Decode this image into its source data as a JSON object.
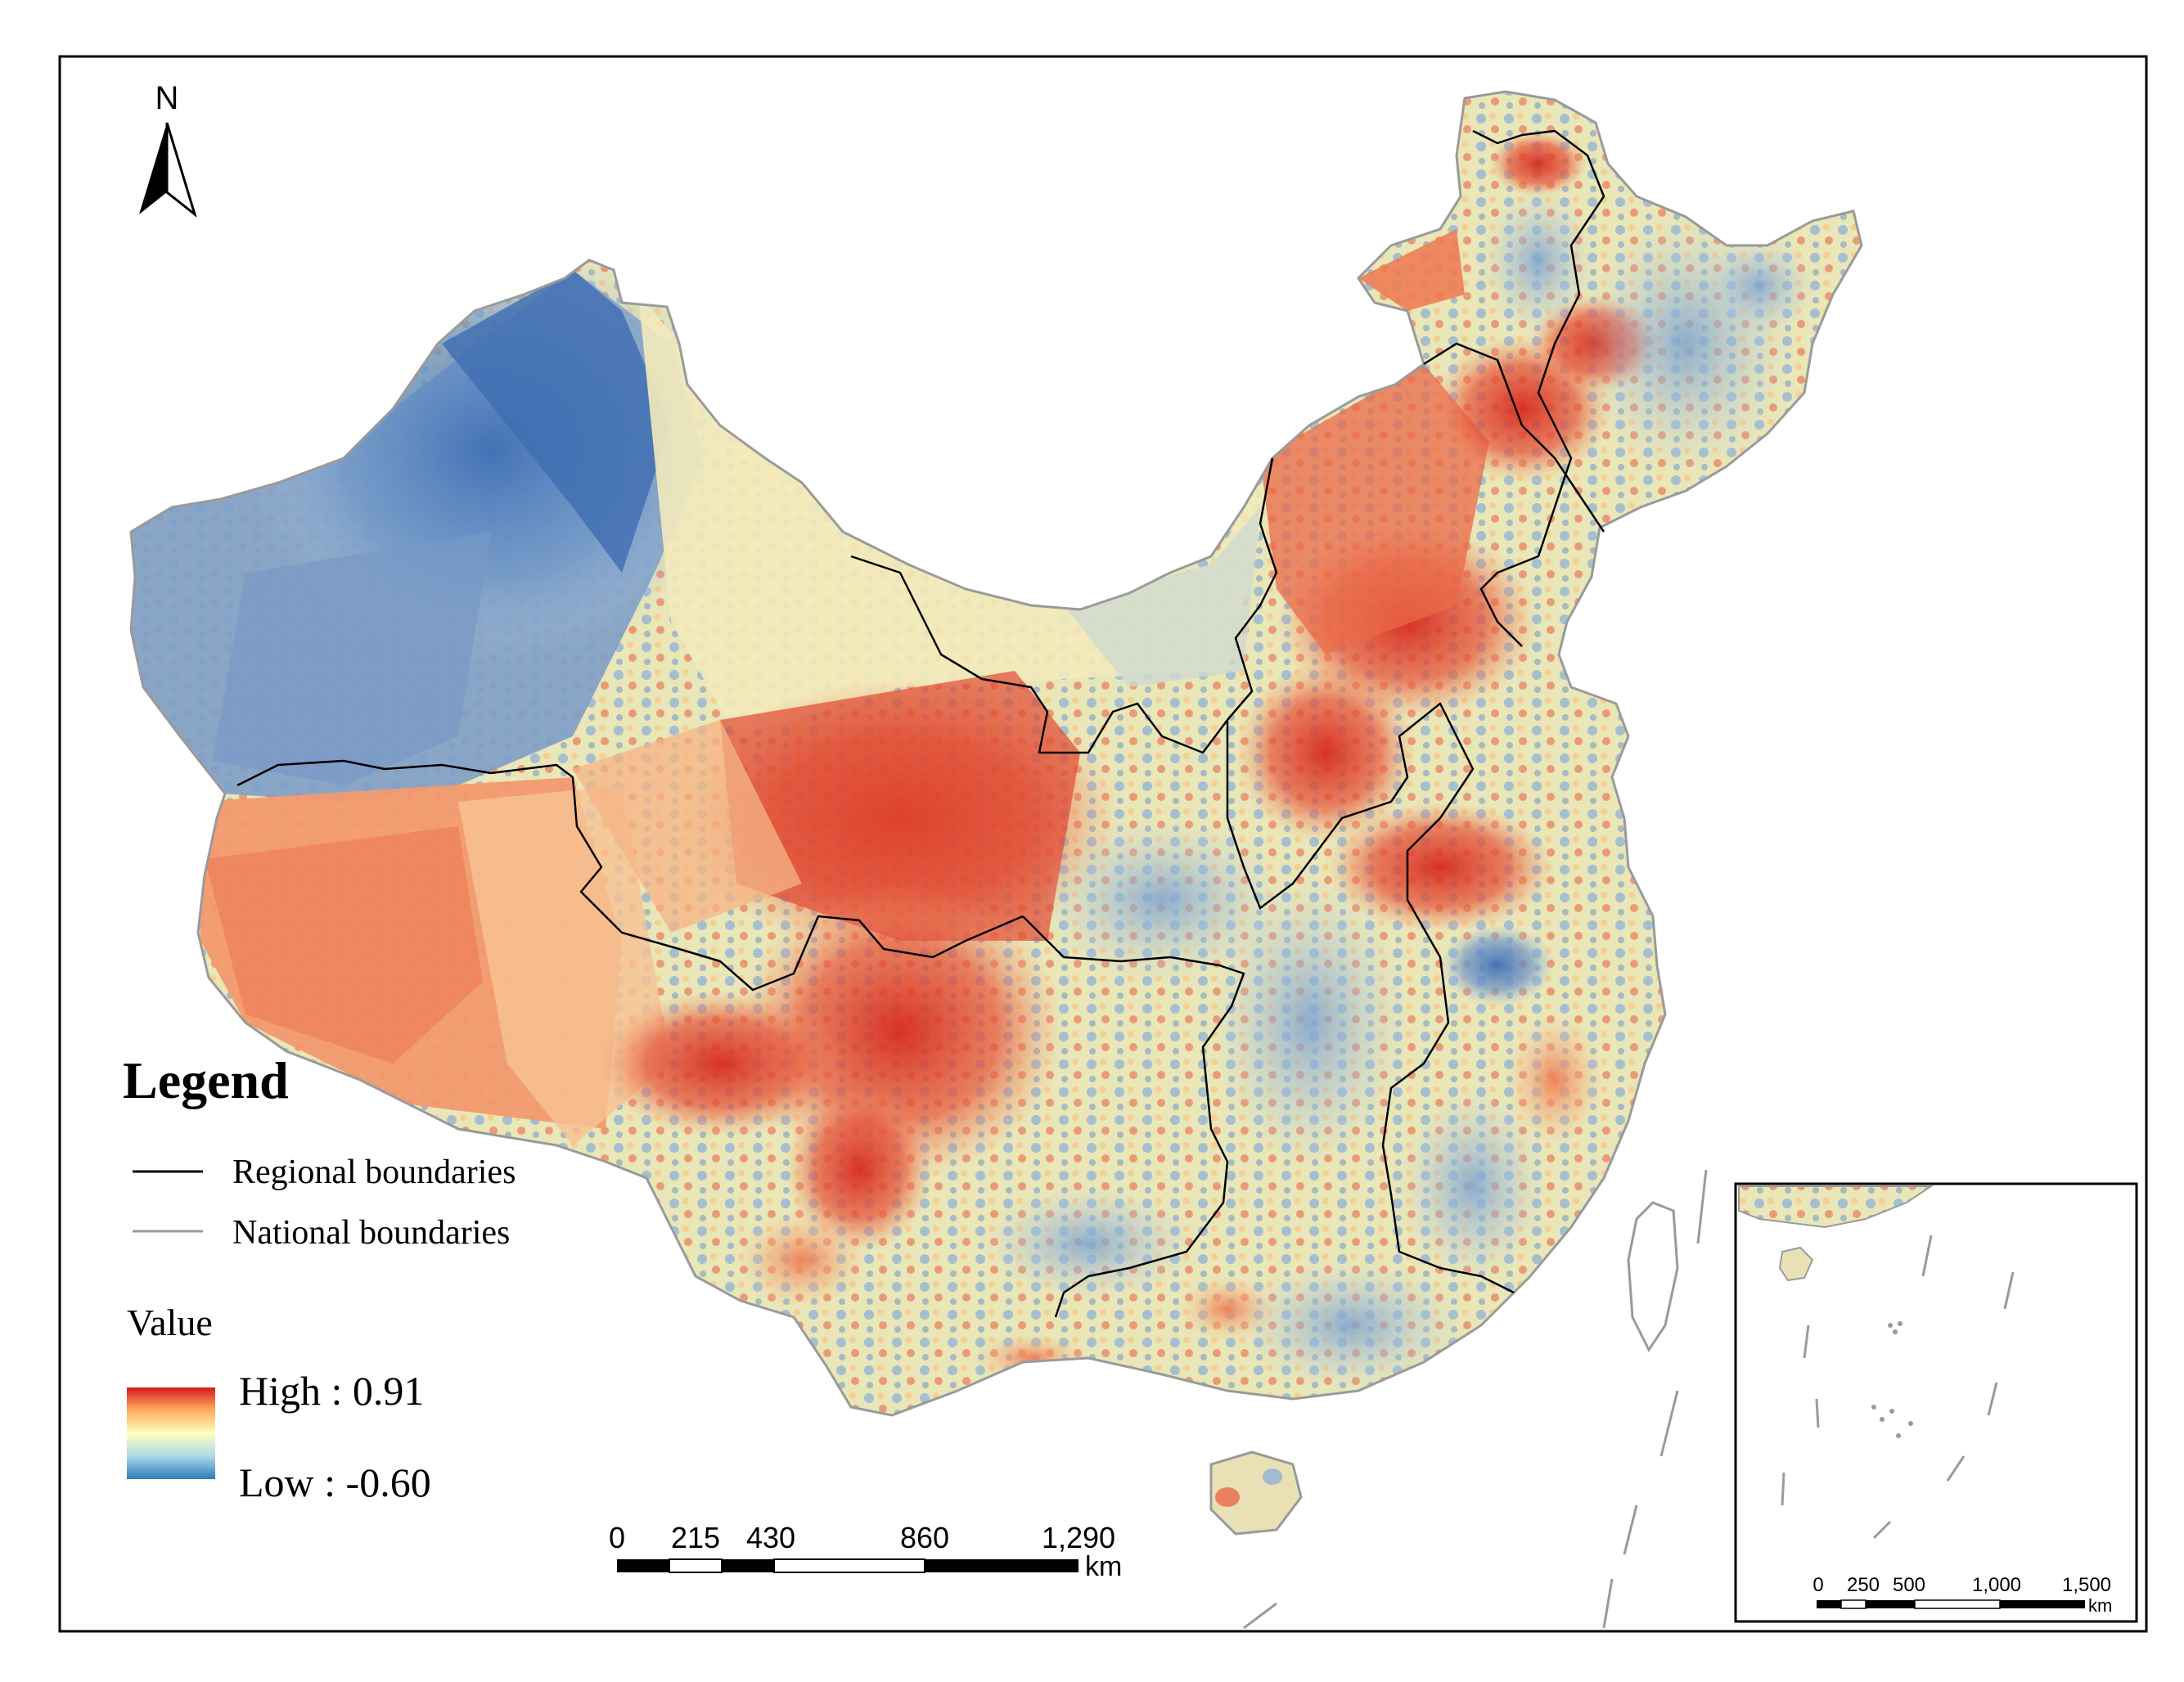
{
  "north_arrow": {
    "label": "N"
  },
  "legend": {
    "title": "Legend",
    "items": [
      {
        "label": "Regional boundaries",
        "color": "#000000"
      },
      {
        "label": "National boundaries",
        "color": "#9a9a9a"
      }
    ],
    "value_title": "Value",
    "high_label": "High : 0.91",
    "low_label": "Low : -0.60",
    "ramp_colors": [
      "#d7191c",
      "#fdae61",
      "#ffffbf",
      "#abd9e9",
      "#2c7bb6"
    ]
  },
  "scale_bar": {
    "ticks": [
      "0",
      "215",
      "430",
      "860",
      "1,290"
    ],
    "unit": "km"
  },
  "inset": {
    "scale_bar": {
      "ticks": [
        "0",
        "250",
        "500",
        "1,000",
        "1,500"
      ],
      "unit": "km"
    }
  }
}
